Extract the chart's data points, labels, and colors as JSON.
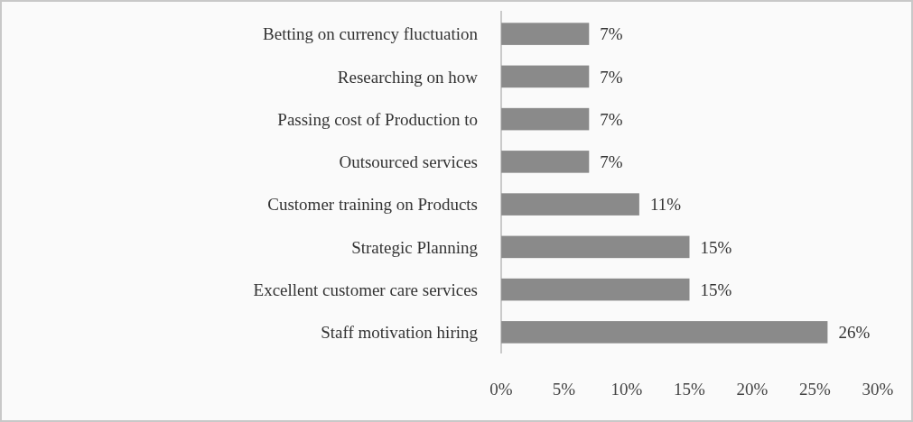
{
  "chart_data": {
    "type": "bar",
    "orientation": "horizontal",
    "categories": [
      "Betting on currency fluctuation",
      "Researching on how",
      "Passing cost of Production to",
      "Outsourced services",
      "Customer training on Products",
      "Strategic Planning",
      "Excellent customer care services",
      "Staff motivation hiring"
    ],
    "values": [
      7,
      7,
      7,
      7,
      11,
      15,
      15,
      26
    ],
    "value_labels": [
      "7%",
      "7%",
      "7%",
      "7%",
      "11%",
      "15%",
      "15%",
      "26%"
    ],
    "color": "#8a8a8a",
    "xlim": [
      0,
      30
    ],
    "xticks": [
      {
        "value": 0,
        "label": "0%"
      },
      {
        "value": 5,
        "label": "5%"
      },
      {
        "value": 10,
        "label": "10%"
      },
      {
        "value": 15,
        "label": "15%"
      },
      {
        "value": 20,
        "label": "20%"
      },
      {
        "value": 25,
        "label": "25%"
      },
      {
        "value": 30,
        "label": "30%"
      }
    ],
    "grid": false
  }
}
